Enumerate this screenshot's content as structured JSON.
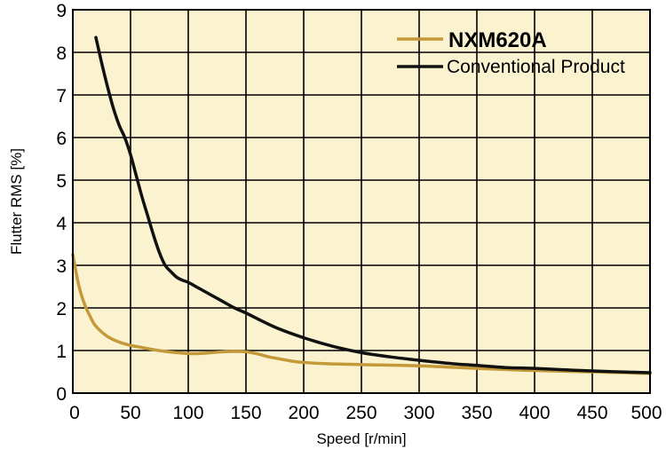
{
  "chart_data": {
    "type": "line",
    "title": "",
    "xlabel": "Speed [r/min]",
    "ylabel": "Flutter RMS [%]",
    "xlim": [
      0,
      500
    ],
    "ylim": [
      0,
      9
    ],
    "x_ticks": [
      0,
      50,
      100,
      150,
      200,
      250,
      300,
      350,
      400,
      450,
      500
    ],
    "y_ticks": [
      0,
      1,
      2,
      3,
      4,
      5,
      6,
      7,
      8,
      9
    ],
    "grid": true,
    "legend_position": "top-right",
    "series": [
      {
        "name": "NXM620A",
        "color": "#c4993a",
        "emphasis": "bold",
        "x": [
          0,
          5,
          10,
          15,
          20,
          30,
          40,
          50,
          60,
          70,
          80,
          90,
          100,
          110,
          120,
          130,
          140,
          150,
          160,
          170,
          180,
          190,
          200,
          220,
          250,
          300,
          350,
          400,
          450,
          500
        ],
        "y": [
          3.25,
          2.55,
          2.1,
          1.8,
          1.57,
          1.33,
          1.2,
          1.12,
          1.07,
          1.02,
          0.98,
          0.95,
          0.93,
          0.93,
          0.95,
          0.97,
          0.98,
          0.97,
          0.92,
          0.85,
          0.8,
          0.75,
          0.72,
          0.69,
          0.67,
          0.64,
          0.58,
          0.53,
          0.5,
          0.46
        ]
      },
      {
        "name": "Conventional Product",
        "color": "#111111",
        "emphasis": "normal",
        "x": [
          20,
          25,
          30,
          35,
          40,
          45,
          50,
          55,
          60,
          65,
          70,
          75,
          80,
          85,
          90,
          95,
          100,
          110,
          120,
          130,
          140,
          150,
          175,
          200,
          225,
          250,
          275,
          300,
          325,
          350,
          375,
          400,
          450,
          500
        ],
        "y": [
          8.35,
          7.75,
          7.2,
          6.7,
          6.3,
          6.0,
          5.6,
          5.1,
          4.6,
          4.15,
          3.7,
          3.3,
          3.0,
          2.85,
          2.72,
          2.65,
          2.6,
          2.45,
          2.3,
          2.15,
          2.0,
          1.88,
          1.55,
          1.3,
          1.1,
          0.95,
          0.85,
          0.77,
          0.7,
          0.65,
          0.6,
          0.58,
          0.52,
          0.48
        ]
      }
    ]
  }
}
